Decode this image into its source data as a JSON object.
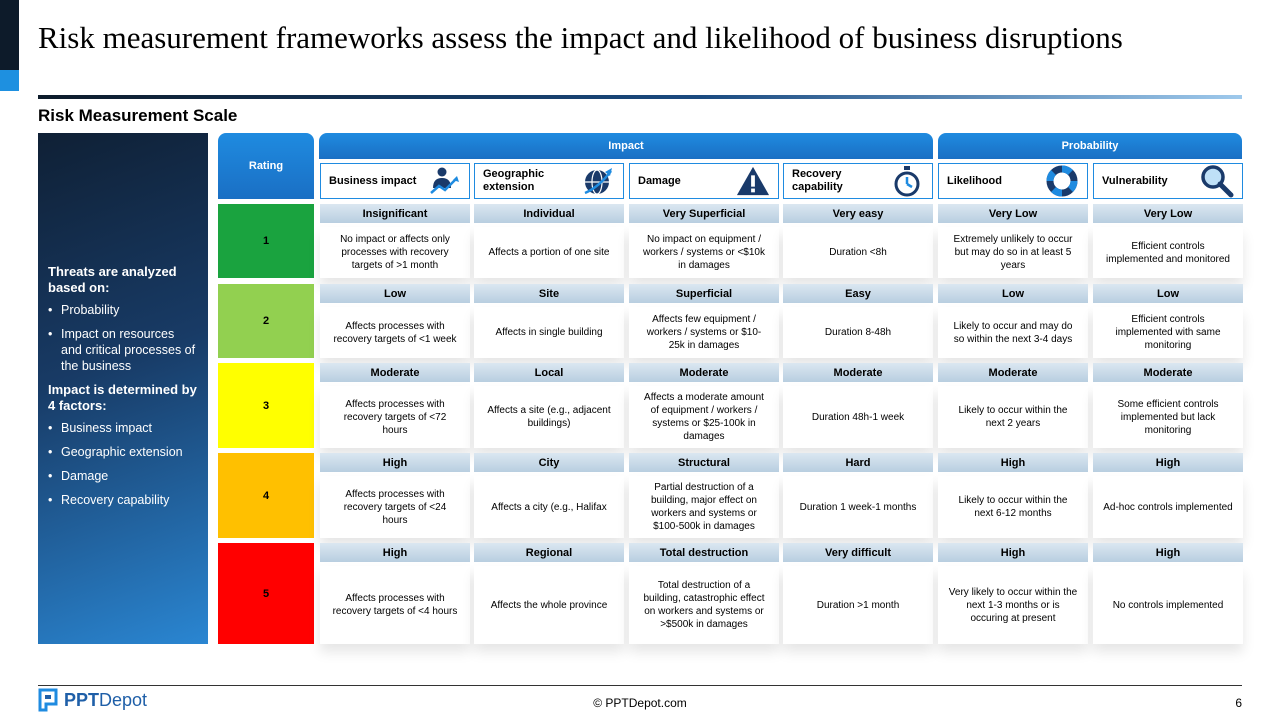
{
  "title": "Risk measurement frameworks assess the impact and likelihood of business disruptions",
  "subtitle": "Risk Measurement Scale",
  "sidebar": {
    "heading1": "Threats are analyzed based on:",
    "list1": [
      "Probability",
      "Impact on resources and critical processes of the business"
    ],
    "heading2": "Impact is determined by 4 factors:",
    "list2": [
      "Business impact",
      "Geographic extension",
      "Damage",
      "Recovery capability"
    ]
  },
  "table": {
    "rating_header": "Rating",
    "groups": [
      {
        "label": "Impact"
      },
      {
        "label": "Probability"
      }
    ],
    "columns": [
      {
        "label": "Business impact",
        "icon": "person-chart-icon"
      },
      {
        "label": "Geographic extension",
        "icon": "globe-plane-icon"
      },
      {
        "label": "Damage",
        "icon": "warning-icon"
      },
      {
        "label": "Recovery capability",
        "icon": "stopwatch-icon"
      },
      {
        "label": "Likelihood",
        "icon": "lifebuoy-icon"
      },
      {
        "label": "Vulnerability",
        "icon": "magnifier-icon"
      }
    ],
    "rows": [
      {
        "rating": "1",
        "color": "#1aa33f",
        "cells": [
          {
            "level": "Insignificant",
            "desc": "No impact or affects only processes with recovery targets of >1 month"
          },
          {
            "level": "Individual",
            "desc": "Affects a portion of one site"
          },
          {
            "level": "Very Superficial",
            "desc": "No impact on equipment / workers / systems or <$10k in damages"
          },
          {
            "level": "Very easy",
            "desc": "Duration <8h"
          },
          {
            "level": "Very Low",
            "desc": "Extremely unlikely to occur but may do so in at least 5 years"
          },
          {
            "level": "Very Low",
            "desc": "Efficient controls implemented and monitored"
          }
        ]
      },
      {
        "rating": "2",
        "color": "#92d050",
        "cells": [
          {
            "level": "Low",
            "desc": "Affects processes with recovery targets of <1 week"
          },
          {
            "level": "Site",
            "desc": "Affects in single building"
          },
          {
            "level": "Superficial",
            "desc": "Affects few equipment / workers / systems or $10-25k in damages"
          },
          {
            "level": "Easy",
            "desc": "Duration 8-48h"
          },
          {
            "level": "Low",
            "desc": "Likely to occur and may do so within the next 3-4 days"
          },
          {
            "level": "Low",
            "desc": "Efficient controls implemented with same monitoring"
          }
        ]
      },
      {
        "rating": "3",
        "color": "#ffff00",
        "cells": [
          {
            "level": "Moderate",
            "desc": "Affects processes with recovery targets of <72 hours"
          },
          {
            "level": "Local",
            "desc": "Affects a site (e.g., adjacent buildings)"
          },
          {
            "level": "Moderate",
            "desc": "Affects a moderate amount of equipment / workers / systems or $25-100k in damages"
          },
          {
            "level": "Moderate",
            "desc": "Duration 48h-1 week"
          },
          {
            "level": "Moderate",
            "desc": "Likely to occur within the next 2 years"
          },
          {
            "level": "Moderate",
            "desc": "Some efficient controls implemented but lack monitoring"
          }
        ]
      },
      {
        "rating": "4",
        "color": "#ffc000",
        "cells": [
          {
            "level": "High",
            "desc": "Affects processes with recovery targets of <24 hours"
          },
          {
            "level": "City",
            "desc": "Affects a city (e.g., Halifax"
          },
          {
            "level": "Structural",
            "desc": "Partial destruction of a building, major effect on workers and systems or $100-500k in damages"
          },
          {
            "level": "Hard",
            "desc": "Duration 1 week-1 months"
          },
          {
            "level": "High",
            "desc": "Likely to occur within the next 6-12 months"
          },
          {
            "level": "High",
            "desc": "Ad-hoc controls implemented"
          }
        ]
      },
      {
        "rating": "5",
        "color": "#ff0000",
        "cells": [
          {
            "level": "High",
            "desc": "Affects processes with recovery targets of <4 hours"
          },
          {
            "level": "Regional",
            "desc": "Affects the whole province"
          },
          {
            "level": "Total destruction",
            "desc": "Total destruction of a building, catastrophic effect on workers and systems or >$500k in damages"
          },
          {
            "level": "Very difficult",
            "desc": "Duration >1 month"
          },
          {
            "level": "High",
            "desc": "Very likely to occur within the next 1-3 months or is occuring at present"
          },
          {
            "level": "High",
            "desc": "No controls implemented"
          }
        ]
      }
    ]
  },
  "footer": {
    "logo_bold": "PPT",
    "logo_rest": "Depot",
    "copyright": "© PPTDepot.com",
    "page": "6"
  }
}
